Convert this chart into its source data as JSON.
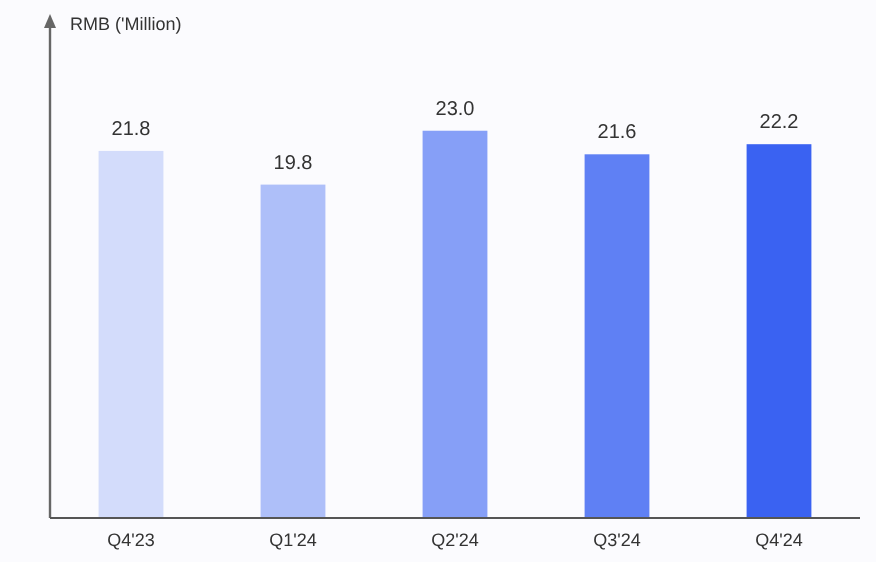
{
  "chart_data": {
    "type": "bar",
    "annotations": [
      "RMB ('Million)"
    ],
    "categories": [
      "Q4'23",
      "Q1'24",
      "Q2'24",
      "Q3'24",
      "Q4'24"
    ],
    "values": [
      21.8,
      19.8,
      23.0,
      21.6,
      22.2
    ],
    "colors": [
      "#d3dcfb",
      "#aebff9",
      "#869ff7",
      "#5f80f4",
      "#3a62f2"
    ],
    "value_labels": [
      "21.8",
      "19.8",
      "23.0",
      "21.6",
      "22.2"
    ]
  }
}
